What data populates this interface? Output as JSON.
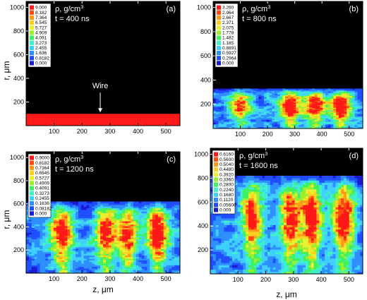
{
  "chart_data": [
    {
      "type": "heatmap",
      "panel_label": "(a)",
      "quantity_label": "ρ, g/cm",
      "quantity_unit_power": "3",
      "time_label": "t = 400 ns",
      "xlabel": "",
      "ylabel": "r, μm",
      "xlim": [
        0,
        550
      ],
      "ylim": [
        0,
        1050
      ],
      "x_ticks": [
        "100",
        "200",
        "300",
        "400",
        "500"
      ],
      "y_ticks": [
        "200",
        "400",
        "600",
        "800",
        "1000"
      ],
      "legend_levels": [
        "9.000",
        "8.182",
        "7.364",
        "6.545",
        "5.727",
        "4.909",
        "4.091",
        "3.273",
        "2.455",
        "1.636",
        "0.8182",
        "0.000"
      ],
      "annotation": "Wire",
      "annotation_x": 265,
      "wire_r_max": 100,
      "plasma_top_r": 0,
      "jets": []
    },
    {
      "type": "heatmap",
      "panel_label": "(b)",
      "quantity_label": "ρ, g/cm",
      "quantity_unit_power": "3",
      "time_label": "t = 800 ns",
      "xlabel": "",
      "ylabel": "",
      "xlim": [
        0,
        550
      ],
      "ylim": [
        0,
        1050
      ],
      "x_ticks": [
        "100",
        "200",
        "300",
        "400",
        "500"
      ],
      "y_ticks": [
        "200",
        "400",
        "600",
        "800",
        "1000"
      ],
      "legend_levels": [
        "3.260",
        "2.964",
        "2.667",
        "2.371",
        "2.075",
        "1.778",
        "1.482",
        "1.185",
        "0.8891",
        "0.5927",
        "0.2964",
        "0.000"
      ],
      "plasma_top_r": 330,
      "jets": [
        [
          100,
          0.75
        ],
        [
          285,
          1.0
        ],
        [
          375,
          0.9
        ],
        [
          470,
          1.0
        ]
      ]
    },
    {
      "type": "heatmap",
      "panel_label": "(c)",
      "quantity_label": "ρ, g/cm",
      "quantity_unit_power": "3",
      "time_label": "t = 1200 ns",
      "xlabel": "",
      "ylabel": "r, μm",
      "xlim": [
        0,
        550
      ],
      "ylim": [
        0,
        1050
      ],
      "x_ticks": [
        "100",
        "200",
        "300",
        "400",
        "500"
      ],
      "y_ticks": [
        "200",
        "400",
        "600",
        "800",
        "1000"
      ],
      "legend_levels": [
        "0.9000",
        "0.8182",
        "0.7364",
        "0.6545",
        "0.5727",
        "0.4909",
        "0.4091",
        "0.3273",
        "0.2455",
        "0.1636",
        "0.08182",
        "0.000"
      ],
      "plasma_top_r": 620,
      "jets": [
        [
          130,
          0.95
        ],
        [
          285,
          0.85
        ],
        [
          365,
          0.8
        ],
        [
          470,
          1.0
        ]
      ]
    },
    {
      "type": "heatmap",
      "panel_label": "(d)",
      "quantity_label": "ρ, g/cm",
      "quantity_unit_power": "3",
      "time_label": "t = 1600 ns",
      "xlabel": "z, μm",
      "ylabel": "",
      "xlim": [
        0,
        550
      ],
      "ylim": [
        0,
        1050
      ],
      "x_ticks": [
        "100",
        "200",
        "300",
        "400",
        "500"
      ],
      "y_ticks": [
        "200",
        "400",
        "600",
        "800",
        "1000"
      ],
      "legend_levels": [
        "0.6160",
        "0.5600",
        "0.5040",
        "0.4480",
        "0.3920",
        "0.3360",
        "0.2800",
        "0.2240",
        "0.1680",
        "0.1120",
        "0.05600",
        "0.000"
      ],
      "plasma_top_r": 820,
      "jets": [
        [
          150,
          0.8
        ],
        [
          290,
          0.85
        ],
        [
          365,
          0.85
        ],
        [
          480,
          0.9
        ]
      ]
    }
  ],
  "panel_c_xlabel": "z, μm",
  "colors": {
    "palette": [
      "#1b1bd0",
      "#1f4fff",
      "#2f8fff",
      "#3fd0ff",
      "#3ff0c8",
      "#40f060",
      "#9af030",
      "#e8f030",
      "#ffd020",
      "#ff9a18",
      "#ff4a10",
      "#ff1818"
    ],
    "background": "#000000",
    "wire": "#ff1a1a"
  }
}
